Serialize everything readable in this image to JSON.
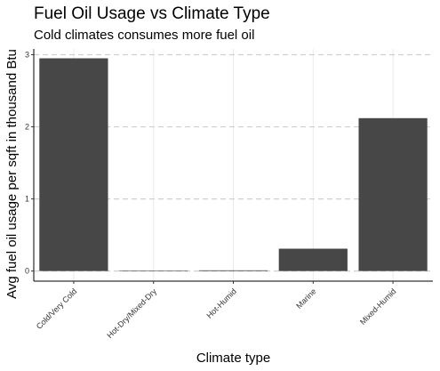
{
  "chart_data": {
    "type": "bar",
    "title": "Fuel Oil Usage vs Climate Type",
    "subtitle": "Cold climates consumes more fuel oil",
    "xlabel": "Climate type",
    "ylabel": "Avg fuel oil usage per sqft in thousand Btu",
    "categories": [
      "Cold/Very Cold",
      "Hot-Dry/Mixed-Dry",
      "Hot-Humid",
      "Marine",
      "Mixed-Humid"
    ],
    "values": [
      2.95,
      0.0,
      0.01,
      0.31,
      2.12
    ],
    "yticks": [
      0,
      1,
      2,
      3
    ],
    "ylim": [
      -0.14,
      3.08
    ],
    "bar_color": "#474747",
    "grid": "horizontal dashed major gridlines, light vertical gridlines",
    "legend": "none"
  }
}
